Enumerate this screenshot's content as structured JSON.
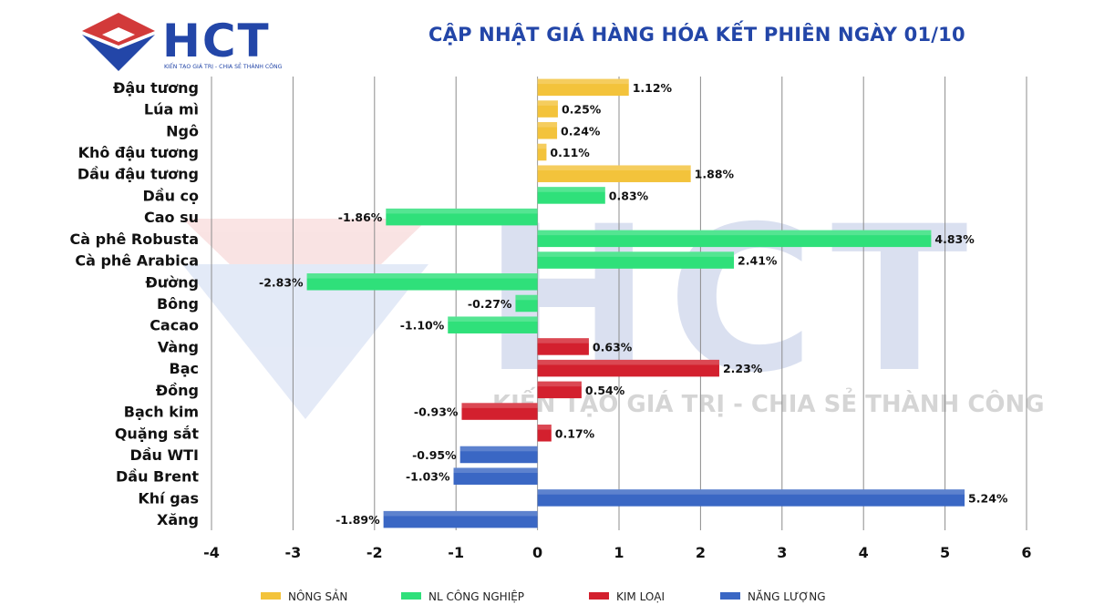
{
  "header": {
    "brand": "HCT",
    "slogan": "KIẾN TẠO GIÁ TRỊ - CHIA SẺ THÀNH CÔNG",
    "title": "CẬP NHẬT GIÁ HÀNG HÓA KẾT PHIÊN NGÀY 01/10"
  },
  "watermark": {
    "brand": "HCT",
    "slogan": "KIẾN TẠO GIÁ TRỊ - CHIA SẺ THÀNH CÔNG"
  },
  "colors": {
    "brand_blue": "#2346a8",
    "brand_red": "#d23a3a",
    "nong_san": "#f3c33b",
    "nl_cong_nghiep": "#2fe07a",
    "kim_loai": "#d3202e",
    "nang_luong": "#3a67c4"
  },
  "chart_data": {
    "type": "bar",
    "orientation": "horizontal",
    "xlim": [
      -4,
      6
    ],
    "xticks": [
      -4,
      -3,
      -2,
      -1,
      0,
      1,
      2,
      3,
      4,
      5,
      6
    ],
    "grid": "vertical",
    "legend_position": "bottom",
    "groups": [
      {
        "name": "NÔNG SẢN",
        "color": "#f3c33b"
      },
      {
        "name": "NL CÔNG NGHIỆP",
        "color": "#2fe07a"
      },
      {
        "name": "KIM LOẠI",
        "color": "#d3202e"
      },
      {
        "name": "NĂNG LƯỢNG",
        "color": "#3a67c4"
      }
    ],
    "bars": [
      {
        "label": "Đậu tương",
        "value": 1.12,
        "text": "1.12%",
        "group": 0
      },
      {
        "label": "Lúa mì",
        "value": 0.25,
        "text": "0.25%",
        "group": 0
      },
      {
        "label": "Ngô",
        "value": 0.24,
        "text": "0.24%",
        "group": 0
      },
      {
        "label": "Khô đậu tương",
        "value": 0.11,
        "text": "0.11%",
        "group": 0
      },
      {
        "label": "Dầu đậu tương",
        "value": 1.88,
        "text": "1.88%",
        "group": 0
      },
      {
        "label": "Dầu cọ",
        "value": 0.83,
        "text": "0.83%",
        "group": 1
      },
      {
        "label": "Cao su",
        "value": -1.86,
        "text": "-1.86%",
        "group": 1
      },
      {
        "label": "Cà phê Robusta",
        "value": 4.83,
        "text": "4.83%",
        "group": 1
      },
      {
        "label": "Cà phê Arabica",
        "value": 2.41,
        "text": "2.41%",
        "group": 1
      },
      {
        "label": "Đường",
        "value": -2.83,
        "text": "-2.83%",
        "group": 1
      },
      {
        "label": "Bông",
        "value": -0.27,
        "text": "-0.27%",
        "group": 1
      },
      {
        "label": "Cacao",
        "value": -1.1,
        "text": "-1.10%",
        "group": 1
      },
      {
        "label": "Vàng",
        "value": 0.63,
        "text": "0.63%",
        "group": 2
      },
      {
        "label": "Bạc",
        "value": 2.23,
        "text": "2.23%",
        "group": 2
      },
      {
        "label": "Đồng",
        "value": 0.54,
        "text": "0.54%",
        "group": 2
      },
      {
        "label": "Bạch kim",
        "value": -0.93,
        "text": "-0.93%",
        "group": 2
      },
      {
        "label": "Quặng sắt",
        "value": 0.17,
        "text": "0.17%",
        "group": 2
      },
      {
        "label": "Dầu WTI",
        "value": -0.95,
        "text": "-0.95%",
        "group": 3
      },
      {
        "label": "Dầu Brent",
        "value": -1.03,
        "text": "-1.03%",
        "group": 3
      },
      {
        "label": "Khí gas",
        "value": 5.24,
        "text": "5.24%",
        "group": 3
      },
      {
        "label": "Xăng",
        "value": -1.89,
        "text": "-1.89%",
        "group": 3
      }
    ]
  }
}
